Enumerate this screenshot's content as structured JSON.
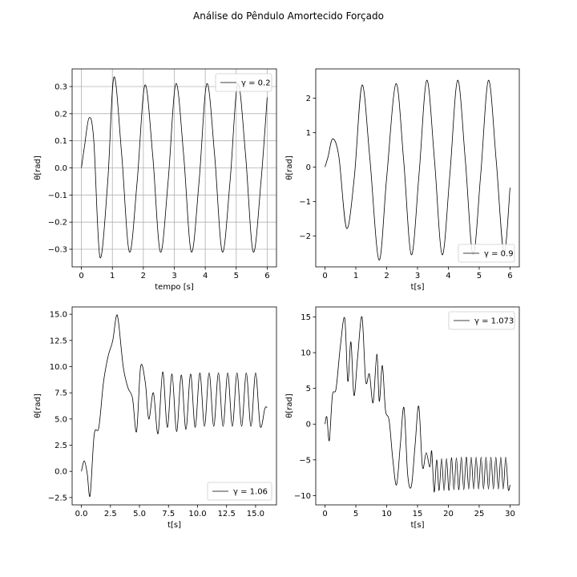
{
  "figure": {
    "title": "Análise do Pêndulo Amortecido Forçado"
  },
  "chart_data": [
    {
      "type": "line",
      "xlabel": "tempo [s]",
      "ylabel": "θ[rad]",
      "xlim": [
        -0.3,
        6.3
      ],
      "ylim": [
        -0.365,
        0.365
      ],
      "xticks": [
        0,
        1,
        2,
        3,
        4,
        5,
        6
      ],
      "xtick_labels": [
        "0",
        "1",
        "2",
        "3",
        "4",
        "5",
        "6"
      ],
      "yticks": [
        -0.3,
        -0.2,
        -0.1,
        0.0,
        0.1,
        0.2,
        0.3
      ],
      "ytick_labels": [
        "−0.3",
        "−0.2",
        "−0.1",
        "0.0",
        "0.1",
        "0.2",
        "0.3"
      ],
      "grid": true,
      "legend_position": "upper right",
      "series": [
        {
          "name": "γ = 0.2",
          "color": "#000000",
          "x": [
            0,
            0.1,
            0.25,
            0.4,
            0.6,
            0.85,
            1.05,
            1.3,
            1.55,
            1.8,
            2.05,
            2.3,
            2.55,
            2.8,
            3.05,
            3.3,
            3.55,
            3.8,
            4.05,
            4.3,
            4.55,
            4.8,
            5.05,
            5.3,
            5.55,
            5.8,
            6.0
          ],
          "y": [
            0,
            0.08,
            0.185,
            0.1,
            -0.33,
            -0.05,
            0.335,
            0.05,
            -0.31,
            -0.05,
            0.305,
            0.05,
            -0.31,
            -0.05,
            0.31,
            0.05,
            -0.31,
            -0.05,
            0.31,
            0.05,
            -0.31,
            -0.05,
            0.31,
            0.05,
            -0.31,
            -0.05,
            0.26
          ]
        }
      ]
    },
    {
      "type": "line",
      "xlabel": "t[s]",
      "ylabel": "θ[rad]",
      "xlim": [
        -0.3,
        6.3
      ],
      "ylim": [
        -2.9,
        2.85
      ],
      "xticks": [
        0,
        1,
        2,
        3,
        4,
        5,
        6
      ],
      "xtick_labels": [
        "0",
        "1",
        "2",
        "3",
        "4",
        "5",
        "6"
      ],
      "yticks": [
        -2,
        -1,
        0,
        1,
        2
      ],
      "ytick_labels": [
        "−2",
        "−1",
        "0",
        "1",
        "2"
      ],
      "grid": false,
      "legend_position": "lower right",
      "series": [
        {
          "name": "γ = 0.9",
          "color": "#000000",
          "x": [
            0,
            0.1,
            0.25,
            0.45,
            0.7,
            0.95,
            1.2,
            1.45,
            1.75,
            2.0,
            2.3,
            2.55,
            2.8,
            3.05,
            3.3,
            3.55,
            3.8,
            4.05,
            4.3,
            4.55,
            4.8,
            5.05,
            5.3,
            5.55,
            5.8,
            6.0
          ],
          "y": [
            0,
            0.3,
            0.82,
            0.3,
            -1.78,
            -0.3,
            2.38,
            0.3,
            -2.7,
            -0.3,
            2.42,
            0.2,
            -2.55,
            -0.2,
            2.52,
            0.2,
            -2.55,
            -0.2,
            2.52,
            0.2,
            -2.55,
            -0.2,
            2.52,
            0.2,
            -2.5,
            -0.6
          ]
        }
      ]
    },
    {
      "type": "line",
      "xlabel": "t[s]",
      "ylabel": "θ[rad]",
      "xlim": [
        -0.8,
        16.8
      ],
      "ylim": [
        -3.2,
        15.7
      ],
      "xticks": [
        0,
        2.5,
        5,
        7.5,
        10,
        12.5,
        15
      ],
      "xtick_labels": [
        "0.0",
        "2.5",
        "5.0",
        "7.5",
        "10.0",
        "12.5",
        "15.0"
      ],
      "yticks": [
        -2.5,
        0,
        2.5,
        5,
        7.5,
        10,
        12.5,
        15
      ],
      "ytick_labels": [
        "−2.5",
        "0.0",
        "2.5",
        "5.0",
        "7.5",
        "10.0",
        "12.5",
        "15.0"
      ],
      "grid": false,
      "legend_position": "lower right",
      "series": [
        {
          "name": "γ = 1.06",
          "color": "#000000",
          "x": [
            0,
            0.25,
            0.5,
            0.75,
            1.1,
            1.5,
            1.9,
            2.3,
            2.7,
            3.0,
            3.2,
            3.6,
            4.0,
            4.4,
            4.75,
            5.1,
            5.5,
            5.8,
            6.2,
            6.6,
            7.0,
            7.4,
            7.8,
            8.2,
            8.6,
            9.0,
            9.4,
            9.8,
            10.2,
            10.6,
            11.0,
            11.4,
            11.8,
            12.2,
            12.6,
            13.0,
            13.4,
            13.8,
            14.2,
            14.6,
            15.0,
            15.4,
            15.8,
            16.0
          ],
          "y": [
            0,
            1.0,
            -0.2,
            -2.3,
            3.5,
            4.2,
            8.5,
            11.0,
            12.5,
            14.8,
            14.2,
            10.0,
            8.0,
            7.0,
            3.8,
            10.0,
            8.5,
            5.0,
            7.5,
            3.6,
            9.5,
            4.2,
            9.3,
            3.8,
            9.2,
            4.0,
            9.3,
            4.2,
            9.4,
            4.3,
            9.4,
            4.3,
            9.4,
            4.3,
            9.4,
            4.3,
            9.4,
            4.3,
            9.4,
            4.3,
            9.4,
            4.3,
            6.0,
            6.1
          ]
        }
      ]
    },
    {
      "type": "line",
      "xlabel": "t[s]",
      "ylabel": "θ[rad]",
      "xlim": [
        -1.5,
        31.5
      ],
      "ylim": [
        -11.3,
        16.4
      ],
      "xticks": [
        0,
        5,
        10,
        15,
        20,
        25,
        30
      ],
      "xtick_labels": [
        "0",
        "5",
        "10",
        "15",
        "20",
        "25",
        "30"
      ],
      "yticks": [
        -10,
        -5,
        0,
        5,
        10,
        15
      ],
      "ytick_labels": [
        "−10",
        "−5",
        "0",
        "5",
        "10",
        "15"
      ],
      "grid": false,
      "legend_position": "upper right",
      "series": [
        {
          "name": "γ = 1.073",
          "color": "#000000",
          "x": [
            0,
            0.3,
            0.7,
            1.2,
            1.8,
            2.5,
            3.2,
            3.7,
            4.2,
            4.7,
            5.3,
            6.0,
            6.6,
            7.2,
            7.8,
            8.4,
            8.8,
            9.3,
            9.8,
            10.4,
            11.0,
            11.6,
            12.2,
            12.8,
            13.4,
            14.0,
            14.6,
            15.2,
            15.8,
            16.4,
            17.0,
            17.3,
            17.7,
            18.1,
            18.5,
            18.9,
            19.3,
            19.7,
            20.1,
            20.5,
            20.9,
            21.3,
            21.7,
            22.1,
            22.5,
            22.9,
            23.3,
            23.7,
            24.1,
            24.5,
            24.9,
            25.3,
            25.7,
            26.1,
            26.5,
            26.9,
            27.3,
            27.7,
            28.1,
            28.5,
            28.9,
            29.3,
            29.7,
            30.0
          ],
          "y": [
            0,
            1.0,
            -2.3,
            4.0,
            5.0,
            11.0,
            14.8,
            6.0,
            11.5,
            4.0,
            9.5,
            15.0,
            6.0,
            7.0,
            3.0,
            9.8,
            3.2,
            8.2,
            2.0,
            0.5,
            -5.0,
            -8.5,
            -3.0,
            2.3,
            -7.0,
            -8.7,
            -3.0,
            2.5,
            -6.0,
            -4.0,
            -6.0,
            -3.8,
            -9.5,
            -5.0,
            -9.3,
            -4.8,
            -9.3,
            -4.8,
            -9.3,
            -4.7,
            -9.2,
            -4.7,
            -9.2,
            -4.6,
            -9.2,
            -4.6,
            -9.1,
            -4.6,
            -9.1,
            -4.6,
            -9.1,
            -4.6,
            -9.1,
            -4.6,
            -9.1,
            -4.6,
            -9.1,
            -4.6,
            -9.1,
            -4.6,
            -9.1,
            -4.6,
            -9.1,
            -8.5
          ]
        }
      ]
    }
  ]
}
